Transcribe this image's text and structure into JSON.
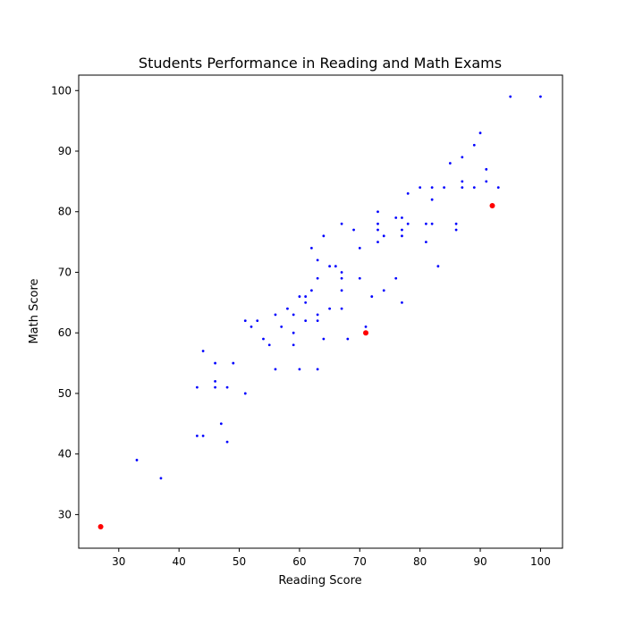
{
  "chart_data": {
    "type": "scatter",
    "title": "Students Performance in Reading and Math Exams",
    "xlabel": "Reading Score",
    "ylabel": "Math Score",
    "xlim": [
      23.35,
      103.65
    ],
    "ylim": [
      24.45,
      102.55
    ],
    "xticks": [
      30,
      40,
      50,
      60,
      70,
      80,
      90,
      100
    ],
    "yticks": [
      30,
      40,
      50,
      60,
      70,
      80,
      90,
      100
    ],
    "grid": false,
    "series": [
      {
        "color": "#0000ff",
        "marker_size": "small",
        "points": [
          [
            33,
            39
          ],
          [
            37,
            36
          ],
          [
            43,
            51
          ],
          [
            43,
            43
          ],
          [
            44,
            57
          ],
          [
            44,
            43
          ],
          [
            46,
            55
          ],
          [
            46,
            52
          ],
          [
            46,
            51
          ],
          [
            47,
            45
          ],
          [
            48,
            51
          ],
          [
            48,
            42
          ],
          [
            49,
            55
          ],
          [
            51,
            62
          ],
          [
            51,
            50
          ],
          [
            52,
            61
          ],
          [
            53,
            62
          ],
          [
            54,
            59
          ],
          [
            55,
            58
          ],
          [
            56,
            63
          ],
          [
            56,
            54
          ],
          [
            57,
            61
          ],
          [
            58,
            64
          ],
          [
            59,
            63
          ],
          [
            59,
            60
          ],
          [
            59,
            58
          ],
          [
            60,
            66
          ],
          [
            60,
            54
          ],
          [
            61,
            66
          ],
          [
            61,
            65
          ],
          [
            61,
            62
          ],
          [
            62,
            74
          ],
          [
            62,
            67
          ],
          [
            63,
            72
          ],
          [
            63,
            69
          ],
          [
            63,
            63
          ],
          [
            63,
            62
          ],
          [
            63,
            54
          ],
          [
            64,
            76
          ],
          [
            64,
            59
          ],
          [
            65,
            71
          ],
          [
            65,
            64
          ],
          [
            66,
            71
          ],
          [
            67,
            78
          ],
          [
            67,
            70
          ],
          [
            67,
            69
          ],
          [
            67,
            67
          ],
          [
            67,
            64
          ],
          [
            68,
            59
          ],
          [
            69,
            77
          ],
          [
            70,
            74
          ],
          [
            70,
            69
          ],
          [
            71,
            61
          ],
          [
            72,
            66
          ],
          [
            73,
            80
          ],
          [
            73,
            78
          ],
          [
            73,
            77
          ],
          [
            73,
            75
          ],
          [
            74,
            76
          ],
          [
            74,
            67
          ],
          [
            76,
            79
          ],
          [
            76,
            69
          ],
          [
            77,
            79
          ],
          [
            77,
            77
          ],
          [
            77,
            76
          ],
          [
            77,
            65
          ],
          [
            78,
            83
          ],
          [
            78,
            78
          ],
          [
            80,
            84
          ],
          [
            81,
            78
          ],
          [
            81,
            75
          ],
          [
            82,
            84
          ],
          [
            82,
            82
          ],
          [
            82,
            78
          ],
          [
            83,
            71
          ],
          [
            84,
            84
          ],
          [
            85,
            88
          ],
          [
            86,
            78
          ],
          [
            86,
            77
          ],
          [
            87,
            89
          ],
          [
            87,
            85
          ],
          [
            87,
            84
          ],
          [
            89,
            91
          ],
          [
            89,
            84
          ],
          [
            90,
            93
          ],
          [
            91,
            87
          ],
          [
            91,
            85
          ],
          [
            93,
            84
          ],
          [
            95,
            99
          ],
          [
            100,
            99
          ]
        ]
      },
      {
        "color": "#ff0000",
        "marker_size": "large",
        "points": [
          [
            27,
            28
          ],
          [
            71,
            60
          ],
          [
            92,
            81
          ]
        ]
      }
    ]
  }
}
